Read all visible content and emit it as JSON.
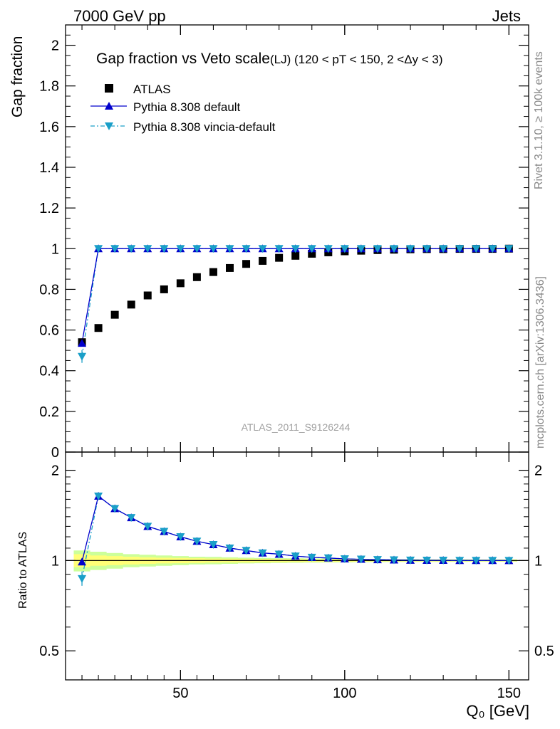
{
  "header": {
    "left": "7000 GeV pp",
    "right": "Jets"
  },
  "side_labels": {
    "rivet": "Rivet 3.1.10, ≥ 100k events",
    "mcplots": "mcplots.cern.ch [arXiv:1306.3436]"
  },
  "watermark": "ATLAS_2011_S9126244",
  "colors": {
    "atlas": "#000000",
    "pythia_default": "#0000cc",
    "pythia_vincia": "#1a9fc8",
    "band_inner": "#ffff77",
    "band_outer": "#ccff99"
  },
  "chart_data": [
    {
      "type": "scatter",
      "title": "Gap fraction vs Veto scale",
      "subtitle": "(LJ) (120 < pT < 150, 2 <Δy < 3)",
      "ylabel": "Gap fraction",
      "xlabel": "",
      "xlim": [
        15,
        156
      ],
      "ylim": [
        0,
        2.1
      ],
      "yticks": [
        {
          "v": 0,
          "label": "0"
        },
        {
          "v": 0.2,
          "label": "0.2"
        },
        {
          "v": 0.4,
          "label": "0.4"
        },
        {
          "v": 0.6,
          "label": "0.6"
        },
        {
          "v": 0.8,
          "label": "0.8"
        },
        {
          "v": 1,
          "label": "1"
        },
        {
          "v": 1.2,
          "label": "1.2"
        },
        {
          "v": 1.4,
          "label": "1.4"
        },
        {
          "v": 1.6,
          "label": "1.6"
        },
        {
          "v": 1.8,
          "label": "1.8"
        },
        {
          "v": 2,
          "label": "2"
        }
      ],
      "legend": [
        {
          "label": "ATLAS"
        },
        {
          "label": "Pythia 8.308 default"
        },
        {
          "label": "Pythia 8.308 vincia-default"
        }
      ],
      "x": [
        20,
        25,
        30,
        35,
        40,
        45,
        50,
        55,
        60,
        65,
        70,
        75,
        80,
        85,
        90,
        95,
        100,
        105,
        110,
        115,
        120,
        125,
        130,
        135,
        140,
        145,
        150
      ],
      "series": [
        {
          "name": "ATLAS",
          "values": [
            0.54,
            0.61,
            0.675,
            0.725,
            0.77,
            0.8,
            0.83,
            0.86,
            0.885,
            0.905,
            0.925,
            0.94,
            0.955,
            0.965,
            0.975,
            0.982,
            0.987,
            0.99,
            0.993,
            0.995,
            0.997,
            0.998,
            0.998,
            0.999,
            0.999,
            0.999,
            1.0
          ]
        },
        {
          "name": "Pythia 8.308 default",
          "values": [
            0.535,
            1.0,
            1.0,
            1.0,
            1.0,
            1.0,
            1.0,
            1.0,
            1.0,
            1.0,
            1.0,
            1.0,
            1.0,
            1.0,
            1.0,
            1.0,
            1.0,
            1.0,
            1.0,
            1.0,
            1.0,
            1.0,
            1.0,
            1.0,
            1.0,
            1.0,
            1.0
          ]
        },
        {
          "name": "Pythia 8.308 vincia-default",
          "values": [
            0.47,
            1.0,
            1.0,
            1.0,
            1.0,
            1.0,
            1.0,
            1.0,
            1.0,
            1.0,
            1.0,
            1.0,
            1.0,
            1.0,
            1.0,
            1.0,
            1.0,
            1.0,
            1.0,
            1.0,
            1.0,
            1.0,
            1.0,
            1.0,
            1.0,
            1.0,
            1.0
          ]
        }
      ]
    },
    {
      "type": "scatter",
      "ylabel": "Ratio to ATLAS",
      "xlabel": "Q₀ [GeV]",
      "xlim": [
        15,
        156
      ],
      "ylim": [
        0.4,
        2.3
      ],
      "log_y": true,
      "yticks": [
        {
          "v": 0.5,
          "label": "0.5"
        },
        {
          "v": 1,
          "label": "1"
        },
        {
          "v": 2,
          "label": "2"
        }
      ],
      "xticks": [
        {
          "v": 50,
          "label": "50"
        },
        {
          "v": 100,
          "label": "100"
        },
        {
          "v": 150,
          "label": "150"
        }
      ],
      "x": [
        20,
        25,
        30,
        35,
        40,
        45,
        50,
        55,
        60,
        65,
        70,
        75,
        80,
        85,
        90,
        95,
        100,
        105,
        110,
        115,
        120,
        125,
        130,
        135,
        140,
        145,
        150
      ],
      "band_inner_halfwidth": [
        0.05,
        0.04,
        0.035,
        0.03,
        0.025,
        0.022,
        0.02,
        0.018,
        0.016,
        0.015,
        0.014,
        0.013,
        0.012,
        0.011,
        0.01,
        0.01,
        0.009,
        0.009,
        0.008,
        0.008,
        0.007,
        0.007,
        0.007,
        0.006,
        0.006,
        0.006,
        0.006
      ],
      "band_outer_halfwidth": [
        0.08,
        0.07,
        0.06,
        0.05,
        0.045,
        0.04,
        0.035,
        0.03,
        0.028,
        0.025,
        0.022,
        0.02,
        0.018,
        0.017,
        0.016,
        0.015,
        0.014,
        0.013,
        0.012,
        0.011,
        0.011,
        0.01,
        0.01,
        0.01,
        0.009,
        0.009,
        0.009
      ],
      "series": [
        {
          "name": "Pythia 8.308 default",
          "values": [
            0.99,
            1.64,
            1.49,
            1.39,
            1.3,
            1.25,
            1.2,
            1.16,
            1.13,
            1.1,
            1.08,
            1.06,
            1.05,
            1.035,
            1.025,
            1.02,
            1.013,
            1.01,
            1.007,
            1.005,
            1.003,
            1.002,
            1.002,
            1.001,
            1.001,
            1.001,
            1.0
          ]
        },
        {
          "name": "Pythia 8.308 vincia-default",
          "values": [
            0.87,
            1.64,
            1.49,
            1.39,
            1.3,
            1.25,
            1.2,
            1.16,
            1.13,
            1.1,
            1.08,
            1.06,
            1.05,
            1.035,
            1.025,
            1.02,
            1.013,
            1.01,
            1.007,
            1.005,
            1.003,
            1.002,
            1.002,
            1.001,
            1.001,
            1.001,
            1.0
          ]
        }
      ]
    }
  ]
}
